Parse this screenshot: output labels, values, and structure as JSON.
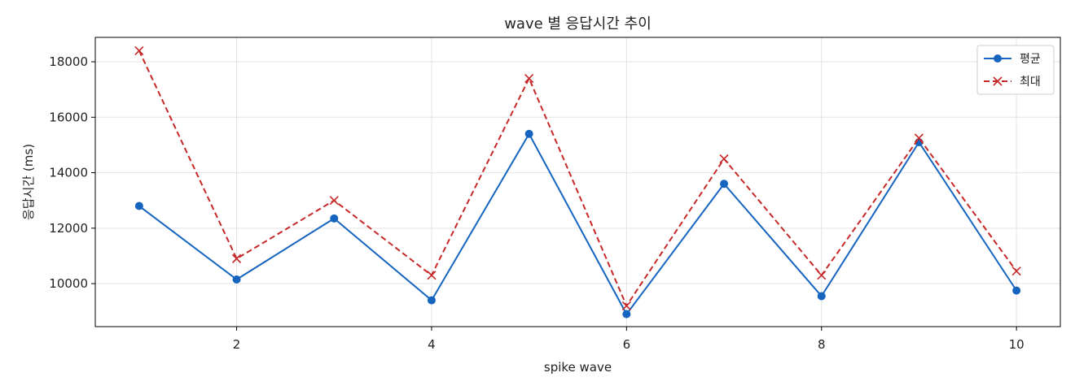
{
  "chart_data": {
    "type": "line",
    "title": "wave 별 응답시간 추이",
    "xlabel": "spike wave",
    "ylabel": "응답시간 (ms)",
    "x": [
      1,
      2,
      3,
      4,
      5,
      6,
      7,
      8,
      9,
      10
    ],
    "xlim": [
      0.55,
      10.45
    ],
    "ylim": [
      8450,
      18880
    ],
    "xticks": [
      2,
      4,
      6,
      8,
      10
    ],
    "yticks": [
      10000,
      12000,
      14000,
      16000,
      18000
    ],
    "grid": true,
    "legend_position": "top-right",
    "series": [
      {
        "name": "평균",
        "color": "#1565c0",
        "line_style": "solid",
        "marker": "circle",
        "values": [
          12800,
          10150,
          12350,
          9400,
          15400,
          8900,
          13600,
          9550,
          15100,
          9750
        ]
      },
      {
        "name": "최대",
        "color": "#c62828",
        "line_style": "dashed",
        "marker": "x",
        "values": [
          18400,
          10900,
          13000,
          10300,
          17400,
          9200,
          14500,
          10300,
          15250,
          10450
        ]
      }
    ]
  }
}
